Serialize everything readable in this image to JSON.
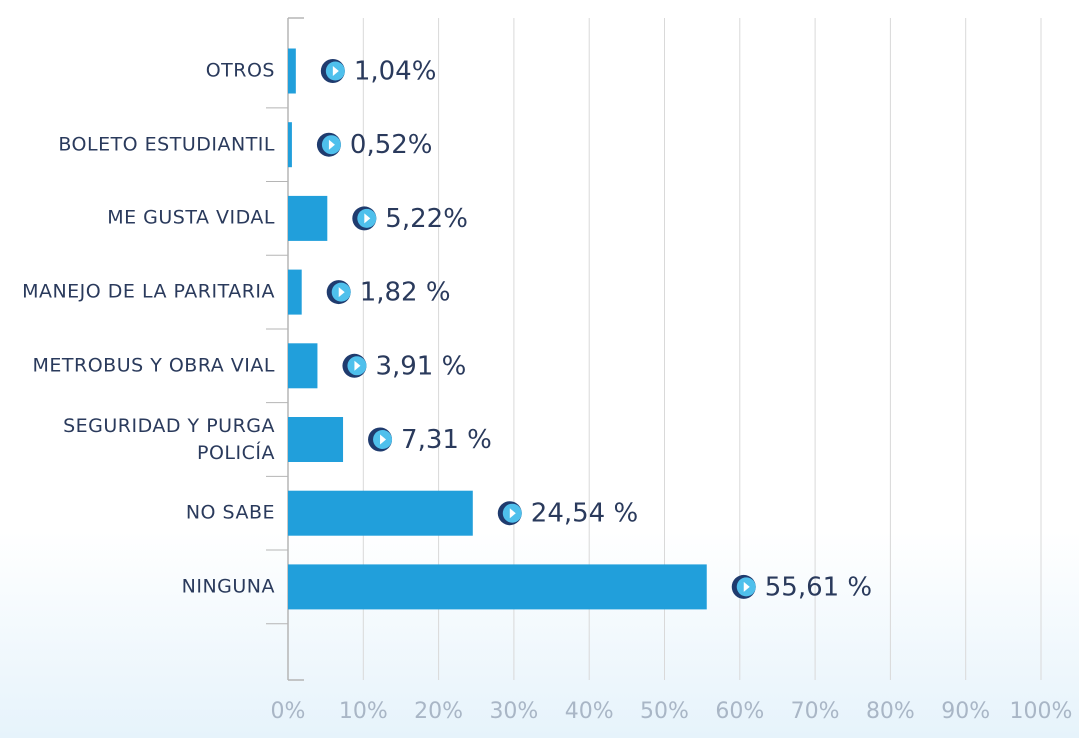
{
  "chart_data": {
    "type": "bar",
    "orientation": "horizontal",
    "categories": [
      "OTROS",
      "BOLETO ESTUDIANTIL",
      "ME GUSTA VIDAL",
      "MANEJO DE LA PARITARIA",
      "METROBUS Y OBRA VIAL",
      "SEGURIDAD Y PURGA POLICÍA",
      "NO SABE",
      "NINGUNA"
    ],
    "values": [
      1.04,
      0.52,
      5.22,
      1.82,
      3.91,
      7.31,
      24.54,
      55.61
    ],
    "value_labels": [
      "1,04%",
      "0,52%",
      "5,22%",
      "1,82 %",
      "3,91 %",
      "7,31 %",
      "24,54 %",
      "55,61 %"
    ],
    "color": "#219fdb",
    "xlim": [
      0,
      100
    ],
    "xticks": [
      {
        "value": 0,
        "label": "0%"
      },
      {
        "value": 10,
        "label": "10%"
      },
      {
        "value": 20,
        "label": "20%"
      },
      {
        "value": 30,
        "label": "30%"
      },
      {
        "value": 40,
        "label": "40%"
      },
      {
        "value": 50,
        "label": "50%"
      },
      {
        "value": 60,
        "label": "60%"
      },
      {
        "value": 70,
        "label": "70%"
      },
      {
        "value": 80,
        "label": "80%"
      },
      {
        "value": 90,
        "label": "90%"
      },
      {
        "value": 100,
        "label": "100%"
      }
    ],
    "grid": true
  }
}
